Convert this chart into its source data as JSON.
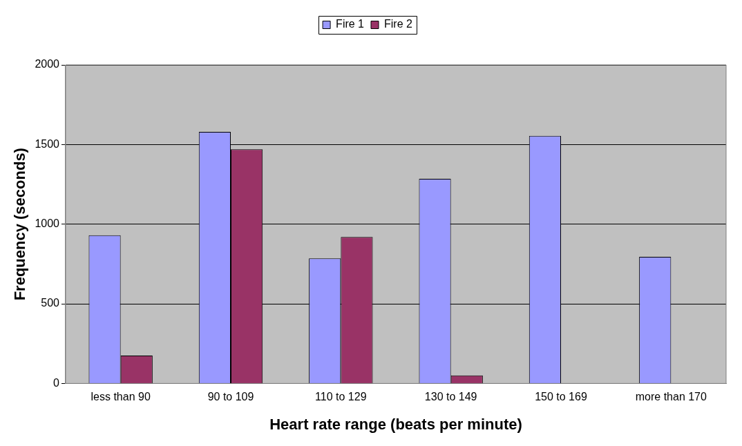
{
  "chart_data": {
    "type": "bar",
    "xlabel": "Heart rate range (beats per minute)",
    "ylabel": "Frequency (seconds)",
    "categories": [
      "less than 90",
      "90 to 109",
      "110 to 129",
      "130 to 149",
      "150 to 169",
      "more than 170"
    ],
    "series": [
      {
        "name": "Fire 1",
        "color": "#9999ff",
        "values": [
          930,
          1580,
          785,
          1285,
          1555,
          795
        ]
      },
      {
        "name": "Fire 2",
        "color": "#993366",
        "values": [
          175,
          1470,
          920,
          50,
          0,
          0
        ]
      }
    ],
    "ylim": [
      0,
      2000
    ],
    "yticks": [
      0,
      500,
      1000,
      1500,
      2000
    ],
    "grid": "y",
    "legend": "top"
  }
}
